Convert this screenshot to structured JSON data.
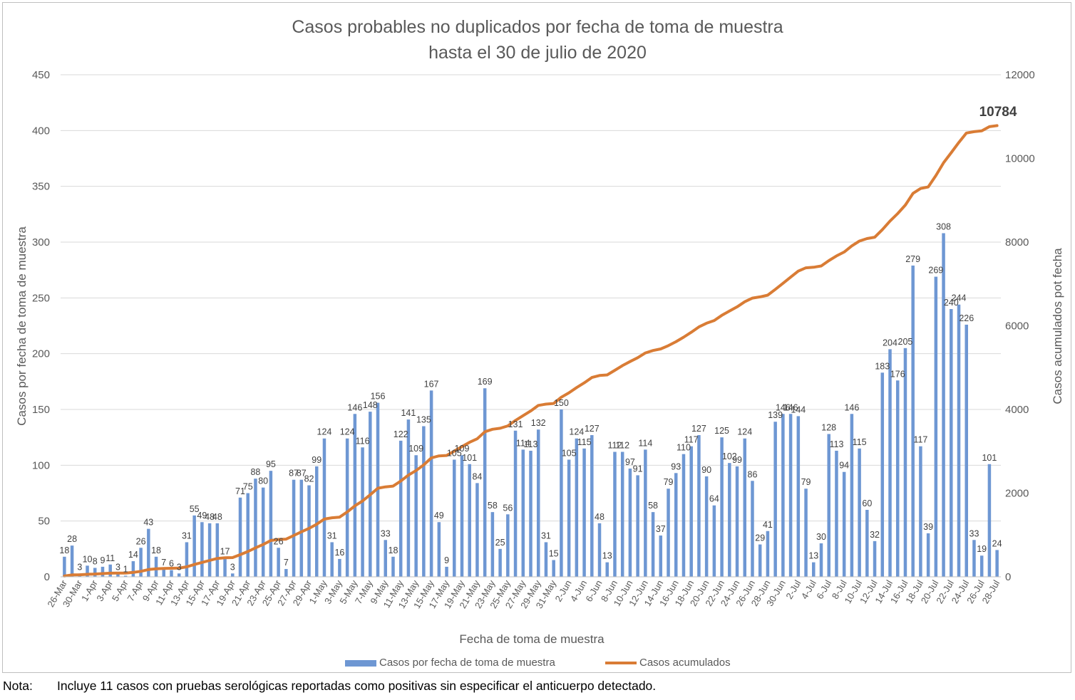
{
  "title_line1": "Casos probables no duplicados por fecha de toma de muestra",
  "title_line2": "hasta el  30 de julio de 2020",
  "note_label": "Nota:",
  "note_text": "Incluye 11 casos con pruebas serológicas reportadas como positivas sin especificar el anticuerpo detectado.",
  "colors": {
    "bar": "#6e97d3",
    "line": "#d97c35",
    "grid": "#d9d9d9",
    "text": "#595959"
  },
  "chart_data": {
    "type": "bar",
    "title": "Casos probables no duplicados por fecha de toma de muestra hasta el  30 de julio de 2020",
    "xlabel": "Fecha de toma de muestra",
    "ylabel": "Casos por fecha de toma de muestra",
    "y2label": "Casos acumulados pot fecha",
    "ylim": [
      0,
      450
    ],
    "yticks": [
      0,
      50,
      100,
      150,
      200,
      250,
      300,
      350,
      400,
      450
    ],
    "y2lim": [
      0,
      12000
    ],
    "y2ticks": [
      0,
      2000,
      4000,
      6000,
      8000,
      10000,
      12000
    ],
    "grid": true,
    "legend_position": "bottom",
    "x_tick_labels": [
      "26-Mar",
      "30-Mar",
      "1-Apr",
      "3-Apr",
      "5-Apr",
      "7-Apr",
      "9-Apr",
      "11-Apr",
      "13-Apr",
      "15-Apr",
      "17-Apr",
      "19-Apr",
      "21-Apr",
      "23-Apr",
      "25-Apr",
      "27-Apr",
      "29-Apr",
      "1-May",
      "3-May",
      "5-May",
      "7-May",
      "9-May",
      "11-May",
      "13-May",
      "15-May",
      "17-May",
      "19-May",
      "21-May",
      "23-May",
      "25-May",
      "27-May",
      "29-May",
      "31-May",
      "2-Jun",
      "4-Jun",
      "6-Jun",
      "8-Jun",
      "10-Jun",
      "12-Jun",
      "14-Jun",
      "16-Jun",
      "18-Jun",
      "20-Jun",
      "22-Jun",
      "24-Jun",
      "26-Jun",
      "28-Jun",
      "30-Jun",
      "2-Jul",
      "4-Jul",
      "6-Jul",
      "8-Jul",
      "10-Jul",
      "12-Jul",
      "14-Jul",
      "16-Jul",
      "18-Jul",
      "20-Jul",
      "22-Jul",
      "24-Jul",
      "26-Jul",
      "28-Jul"
    ],
    "series": [
      {
        "name": "Casos por fecha de toma de muestra",
        "type": "bar",
        "axis": "left",
        "values": [
          18,
          28,
          3,
          10,
          8,
          9,
          11,
          3,
          1,
          14,
          26,
          43,
          18,
          7,
          6,
          3,
          31,
          55,
          49,
          48,
          48,
          17,
          3,
          71,
          75,
          88,
          80,
          95,
          26,
          7,
          87,
          87,
          82,
          99,
          124,
          31,
          16,
          124,
          146,
          116,
          148,
          156,
          33,
          18,
          122,
          141,
          109,
          135,
          167,
          49,
          9,
          105,
          109,
          101,
          84,
          169,
          58,
          25,
          56,
          131,
          114,
          113,
          132,
          31,
          15,
          150,
          105,
          124,
          115,
          127,
          48,
          13,
          112,
          112,
          97,
          91,
          114,
          58,
          37,
          79,
          93,
          110,
          117,
          127,
          90,
          64,
          125,
          102,
          99,
          124,
          86,
          29,
          41,
          139,
          146,
          146,
          144,
          79,
          13,
          30,
          128,
          113,
          94,
          146,
          115,
          60,
          32,
          183,
          204,
          176,
          205,
          279,
          117,
          39,
          269,
          308,
          240,
          244,
          226,
          33,
          19,
          101,
          24
        ]
      },
      {
        "name": "Casos acumulados",
        "type": "line",
        "axis": "right",
        "final_value_label": "10784"
      }
    ]
  }
}
